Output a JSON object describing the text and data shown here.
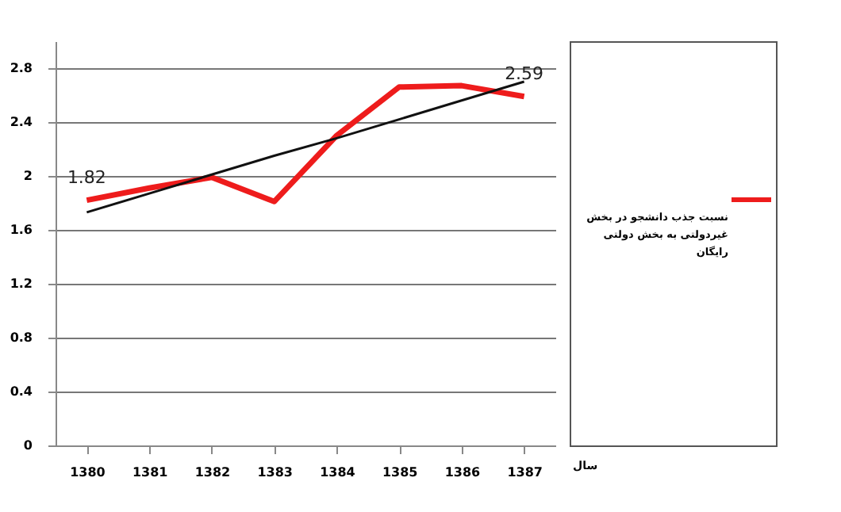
{
  "chart_data": {
    "type": "line",
    "xlabel": "سال",
    "categories": [
      "1380",
      "1381",
      "1382",
      "1383",
      "1384",
      "1385",
      "1386",
      "1387"
    ],
    "series": [
      {
        "name": "نسبت جذب دانشجو در بخش غیردولتی به بخش دولتی رایگان",
        "color": "#ee1c1c",
        "values": [
          1.82,
          1.91,
          1.99,
          1.81,
          2.3,
          2.66,
          2.67,
          2.59
        ],
        "value_labels": [
          "1.82",
          null,
          null,
          null,
          null,
          null,
          null,
          "2.59"
        ]
      },
      {
        "type": "line",
        "color": "#111111",
        "values": [
          1.73,
          1.87,
          2.01,
          2.15,
          2.28,
          2.42,
          2.56,
          2.7
        ]
      }
    ],
    "ylim": [
      0,
      3
    ],
    "yticks": [
      0,
      0.4,
      0.8,
      1.2,
      1.6,
      2,
      2.4,
      2.8
    ],
    "grid": "y",
    "legend": "right"
  }
}
